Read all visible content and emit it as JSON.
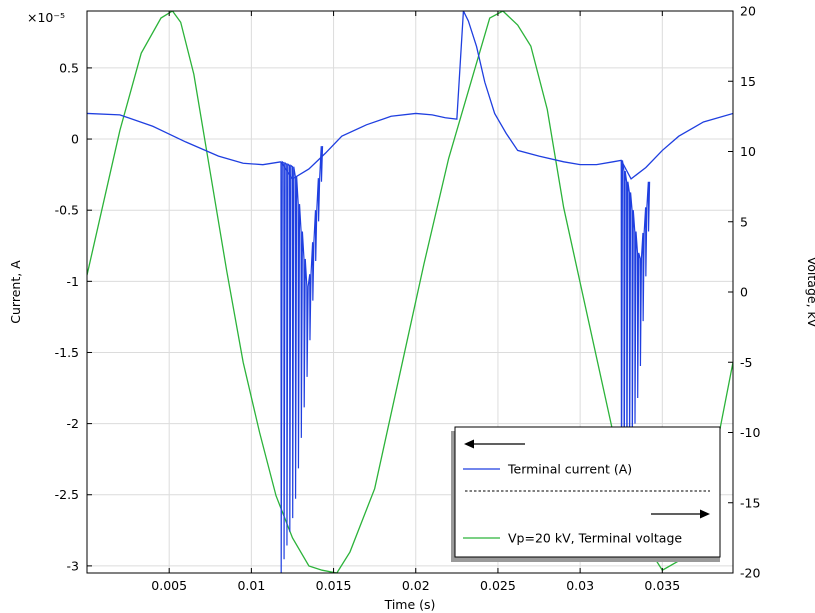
{
  "chart_data": {
    "type": "line",
    "xlabel": "Time (s)",
    "ylabel": "Current, A",
    "y2label": "Voltage, kV",
    "y_exponent_label": "×10⁻⁵",
    "xlim": [
      0,
      0.0393
    ],
    "ylim": [
      -3.05,
      0.9
    ],
    "y2lim": [
      -20,
      20
    ],
    "x_ticks": [
      0.005,
      0.01,
      0.015,
      0.02,
      0.025,
      0.03,
      0.035
    ],
    "x_tick_labels": [
      "0.005",
      "0.01",
      "0.015",
      "0.02",
      "0.025",
      "0.03",
      "0.035"
    ],
    "y_ticks": [
      0.5,
      0,
      -0.5,
      -1,
      -1.5,
      -2,
      -2.5,
      -3
    ],
    "y_tick_labels": [
      "0.5",
      "0",
      "-0.5",
      "-1",
      "-1.5",
      "-2",
      "-2.5",
      "-3"
    ],
    "y2_ticks": [
      20,
      15,
      10,
      5,
      0,
      -5,
      -10,
      -15,
      -20
    ],
    "y2_tick_labels": [
      "20",
      "15",
      "10",
      "5",
      "0",
      "-5",
      "-10",
      "-15",
      "-20"
    ],
    "grid": true,
    "legend_position": "bottom-right",
    "series": [
      {
        "name": "Terminal current (A)",
        "axis": "left",
        "color": "#1f3fe0",
        "x": [
          0.0,
          0.002,
          0.004,
          0.006,
          0.008,
          0.0095,
          0.0107,
          0.0118
        ],
        "y": [
          0.18,
          0.17,
          0.09,
          -0.02,
          -0.12,
          -0.17,
          -0.18,
          -0.16
        ],
        "base": [
          [
            0.0118,
            -0.16
          ],
          [
            0.0125,
            -0.28
          ],
          [
            0.0135,
            -0.21
          ],
          [
            0.0145,
            -0.1
          ],
          [
            0.0155,
            0.02
          ],
          [
            0.017,
            0.1
          ],
          [
            0.0185,
            0.16
          ],
          [
            0.02,
            0.18
          ],
          [
            0.021,
            0.17
          ],
          [
            0.0218,
            0.15
          ],
          [
            0.0225,
            0.14
          ],
          [
            0.0229,
            0.9
          ],
          [
            0.0232,
            0.83
          ],
          [
            0.0237,
            0.65
          ],
          [
            0.0242,
            0.4
          ],
          [
            0.0248,
            0.18
          ],
          [
            0.0255,
            0.04
          ],
          [
            0.0262,
            -0.08
          ],
          [
            0.0275,
            -0.12
          ],
          [
            0.029,
            -0.16
          ],
          [
            0.03,
            -0.18
          ],
          [
            0.031,
            -0.18
          ],
          [
            0.032,
            -0.16
          ],
          [
            0.0325,
            -0.15
          ],
          [
            0.0331,
            -0.28
          ],
          [
            0.034,
            -0.2
          ],
          [
            0.035,
            -0.08
          ],
          [
            0.036,
            0.02
          ],
          [
            0.0375,
            0.12
          ],
          [
            0.0393,
            0.18
          ]
        ],
        "bursts": [
          {
            "x_start": 0.0118,
            "count": 15,
            "period": 0.000175,
            "upper": [
              -0.16,
              -0.2,
              -1.1,
              -0.05
            ],
            "lower": [
              -3.05,
              -2.6,
              -1.6,
              -0.3
            ]
          },
          {
            "x_start": 0.0325,
            "count": 11,
            "period": 0.000165,
            "upper": [
              -0.15,
              -0.4,
              -0.9,
              -0.3
            ],
            "lower": [
              -2.7,
              -2.3,
              -1.7,
              -0.65
            ]
          }
        ]
      },
      {
        "name": "Vp=20 kV, Terminal voltage",
        "axis": "right",
        "color": "#2cb33a",
        "x": [
          0.0,
          0.002,
          0.0033,
          0.0045,
          0.0052,
          0.0057,
          0.0065,
          0.0075,
          0.0085,
          0.0095,
          0.0105,
          0.0115,
          0.0125,
          0.0135,
          0.0143,
          0.0152,
          0.016,
          0.0175,
          0.019,
          0.0205,
          0.022,
          0.0235,
          0.0245,
          0.0253,
          0.0262,
          0.027,
          0.028,
          0.029,
          0.0305,
          0.032,
          0.0335,
          0.0343,
          0.035,
          0.0365,
          0.0378,
          0.0393
        ],
        "y": [
          1.2,
          11.5,
          17,
          19.5,
          20,
          19.2,
          15.5,
          8.5,
          1.5,
          -5,
          -10,
          -14.5,
          -17.5,
          -19.5,
          -19.8,
          -20,
          -18.5,
          -14,
          -6,
          2,
          9.5,
          15.5,
          19.5,
          20,
          19,
          17.5,
          13,
          6,
          -2,
          -10,
          -16,
          -18.5,
          -19.8,
          -18.8,
          -14,
          -5
        ]
      }
    ]
  }
}
